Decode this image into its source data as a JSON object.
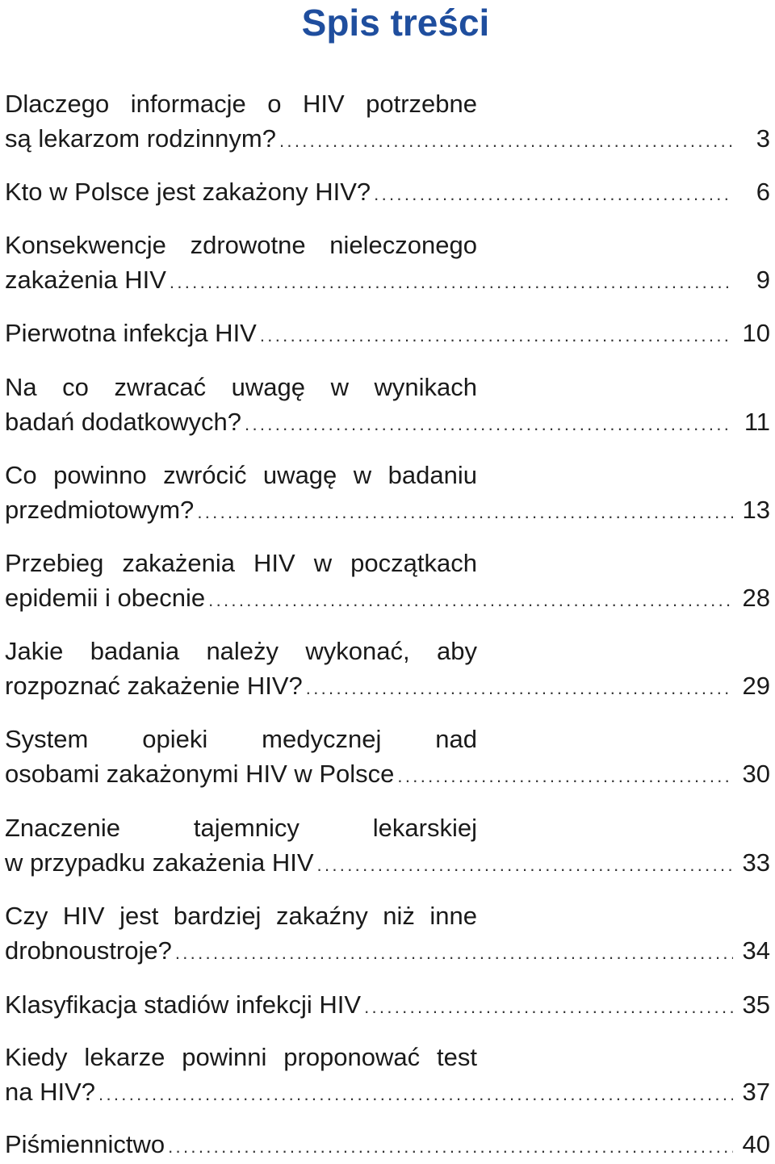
{
  "title": "Spis treści",
  "entries": [
    {
      "line1": "Dlaczego informacje o HIV potrzebne",
      "line2": "są lekarzom rodzinnym?",
      "page": "3"
    },
    {
      "line1": "",
      "line2": "Kto w Polsce jest zakażony HIV?",
      "page": "6"
    },
    {
      "line1": "Konsekwencje zdrowotne nieleczonego",
      "line2": "zakażenia HIV",
      "page": "9"
    },
    {
      "line1": "",
      "line2": "Pierwotna infekcja HIV",
      "page": "10"
    },
    {
      "line1": "Na co zwracać uwagę w wynikach",
      "line2": "badań dodatkowych?",
      "page": "11"
    },
    {
      "line1": "Co powinno zwrócić uwagę w badaniu",
      "line2": "przedmiotowym?",
      "page": "13"
    },
    {
      "line1": "Przebieg zakażenia HIV w początkach",
      "line2": "epidemii i obecnie",
      "page": "28"
    },
    {
      "line1": "Jakie badania należy wykonać, aby",
      "line2": "rozpoznać zakażenie HIV?",
      "page": "29"
    },
    {
      "line1": "System opieki medycznej nad",
      "line2": "osobami zakażonymi HIV w Polsce",
      "page": "30"
    },
    {
      "line1": "Znaczenie tajemnicy lekarskiej",
      "line2": "w przypadku zakażenia HIV",
      "page": "33"
    },
    {
      "line1": "Czy HIV jest bardziej zakaźny niż inne",
      "line2": "drobnoustroje?",
      "page": "34"
    },
    {
      "line1": "",
      "line2": "Klasyfikacja stadiów infekcji HIV",
      "page": "35"
    },
    {
      "line1": "Kiedy lekarze powinni proponować test",
      "line2": "na HIV?",
      "page": "37"
    },
    {
      "line1": "",
      "line2": "Piśmiennictwo",
      "page": "40"
    }
  ]
}
